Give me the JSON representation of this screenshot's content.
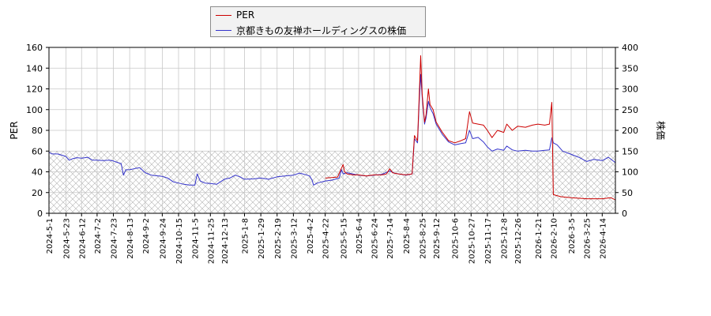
{
  "chart_data": {
    "type": "line",
    "legend": [
      {
        "label": "PER",
        "color": "#cc0000"
      },
      {
        "label": "京都きもの友禅ホールディングスの株価",
        "color": "#3333cc"
      }
    ],
    "legend_position": "top-center",
    "ylabel_left": "PER",
    "ylabel_right": "株価",
    "ylim_left": [
      0,
      160
    ],
    "ylim_right": [
      0,
      400
    ],
    "yticks_left": [
      "0",
      "20",
      "40",
      "60",
      "80",
      "100",
      "120",
      "140",
      "160"
    ],
    "yticks_right": [
      "0",
      "50",
      "100",
      "150",
      "200",
      "250",
      "300",
      "350",
      "400"
    ],
    "grid": true,
    "hatched_region_left_axis": [
      0,
      60
    ],
    "x_tick_labels": [
      "2024-5-1",
      "2024-5-23",
      "2024-6-12",
      "2024-7-2",
      "2024-7-23",
      "2024-8-13",
      "2024-9-2",
      "2024-9-24",
      "2024-10-15",
      "2024-11-5",
      "2024-11-25",
      "2024-12-13",
      "2025-1-8",
      "2025-1-29",
      "2025-2-19",
      "2025-3-12",
      "2025-4-2",
      "2025-4-22",
      "2025-5-15",
      "2025-6-4",
      "2025-6-24",
      "2025-7-14",
      "2025-8-4",
      "2025-8-25",
      "2025-9-12",
      "2025-10-6",
      "2025-10-27",
      "2025-11-17",
      "2025-12-8",
      "2025-12-26",
      "2026-1-21",
      "2026-2-10",
      "2026-3-5",
      "2026-3-25",
      "2026-4-14"
    ],
    "x_range": [
      "2024-5-1",
      "2026-5-1"
    ],
    "series": [
      {
        "name": "PER",
        "axis": "left",
        "color": "#cc0000",
        "points": [
          [
            "2025-4-22",
            34
          ],
          [
            "2025-5-8",
            35
          ],
          [
            "2025-5-12",
            42
          ],
          [
            "2025-5-15",
            47
          ],
          [
            "2025-5-17",
            40
          ],
          [
            "2025-5-20",
            38
          ],
          [
            "2025-5-28",
            37
          ],
          [
            "2025-6-4",
            37
          ],
          [
            "2025-6-14",
            36
          ],
          [
            "2025-6-24",
            37
          ],
          [
            "2025-7-4",
            37
          ],
          [
            "2025-7-10",
            38
          ],
          [
            "2025-7-14",
            43
          ],
          [
            "2025-7-18",
            39
          ],
          [
            "2025-7-25",
            38
          ],
          [
            "2025-8-4",
            37
          ],
          [
            "2025-8-12",
            38
          ],
          [
            "2025-8-15",
            75
          ],
          [
            "2025-8-19",
            70
          ],
          [
            "2025-8-21",
            110
          ],
          [
            "2025-8-23",
            152
          ],
          [
            "2025-8-25",
            115
          ],
          [
            "2025-8-28",
            88
          ],
          [
            "2025-8-30",
            95
          ],
          [
            "2025-9-2",
            120
          ],
          [
            "2025-9-4",
            105
          ],
          [
            "2025-9-8",
            100
          ],
          [
            "2025-9-12",
            88
          ],
          [
            "2025-9-20",
            78
          ],
          [
            "2025-9-28",
            70
          ],
          [
            "2025-10-6",
            68
          ],
          [
            "2025-10-14",
            70
          ],
          [
            "2025-10-20",
            72
          ],
          [
            "2025-10-25",
            98
          ],
          [
            "2025-10-29",
            87
          ],
          [
            "2025-11-5",
            86
          ],
          [
            "2025-11-12",
            85
          ],
          [
            "2025-11-17",
            80
          ],
          [
            "2025-11-23",
            73
          ],
          [
            "2025-11-30",
            80
          ],
          [
            "2025-12-8",
            78
          ],
          [
            "2025-12-12",
            86
          ],
          [
            "2025-12-19",
            80
          ],
          [
            "2025-12-26",
            84
          ],
          [
            "2026-1-5",
            83
          ],
          [
            "2026-1-14",
            85
          ],
          [
            "2026-1-21",
            86
          ],
          [
            "2026-1-30",
            85
          ],
          [
            "2026-2-5",
            86
          ],
          [
            "2026-2-8",
            107
          ],
          [
            "2026-2-10",
            18
          ],
          [
            "2026-2-20",
            16
          ],
          [
            "2026-3-5",
            15
          ],
          [
            "2026-3-25",
            14
          ],
          [
            "2026-4-14",
            14
          ],
          [
            "2026-4-25",
            15
          ],
          [
            "2026-5-1",
            13
          ]
        ]
      },
      {
        "name": "京都きもの友禅ホールディングスの株価",
        "axis": "right",
        "color": "#3333cc",
        "points": [
          [
            "2024-5-1",
            147
          ],
          [
            "2024-5-5",
            143
          ],
          [
            "2024-5-12",
            143
          ],
          [
            "2024-5-18",
            140
          ],
          [
            "2024-5-23",
            137
          ],
          [
            "2024-5-27",
            128
          ],
          [
            "2024-6-1",
            132
          ],
          [
            "2024-6-6",
            134
          ],
          [
            "2024-6-12",
            133
          ],
          [
            "2024-6-20",
            135
          ],
          [
            "2024-6-26",
            128
          ],
          [
            "2024-7-2",
            128
          ],
          [
            "2024-7-10",
            127
          ],
          [
            "2024-7-18",
            128
          ],
          [
            "2024-7-23",
            126
          ],
          [
            "2024-7-29",
            122
          ],
          [
            "2024-8-2",
            120
          ],
          [
            "2024-8-5",
            92
          ],
          [
            "2024-8-8",
            105
          ],
          [
            "2024-8-13",
            105
          ],
          [
            "2024-8-20",
            108
          ],
          [
            "2024-8-26",
            110
          ],
          [
            "2024-9-2",
            98
          ],
          [
            "2024-9-10",
            92
          ],
          [
            "2024-9-24",
            89
          ],
          [
            "2024-10-1",
            85
          ],
          [
            "2024-10-8",
            76
          ],
          [
            "2024-10-15",
            73
          ],
          [
            "2024-10-22",
            70
          ],
          [
            "2024-10-29",
            68
          ],
          [
            "2024-11-5",
            68
          ],
          [
            "2024-11-8",
            95
          ],
          [
            "2024-11-12",
            78
          ],
          [
            "2024-11-18",
            73
          ],
          [
            "2024-11-25",
            72
          ],
          [
            "2024-12-3",
            70
          ],
          [
            "2024-12-13",
            82
          ],
          [
            "2024-12-20",
            85
          ],
          [
            "2024-12-27",
            92
          ],
          [
            "2025-1-2",
            88
          ],
          [
            "2025-1-8",
            82
          ],
          [
            "2025-1-20",
            83
          ],
          [
            "2025-1-29",
            85
          ],
          [
            "2025-2-8",
            82
          ],
          [
            "2025-2-19",
            88
          ],
          [
            "2025-3-1",
            90
          ],
          [
            "2025-3-12",
            92
          ],
          [
            "2025-3-20",
            97
          ],
          [
            "2025-3-28",
            93
          ],
          [
            "2025-4-2",
            90
          ],
          [
            "2025-4-5",
            80
          ],
          [
            "2025-4-7",
            68
          ],
          [
            "2025-4-12",
            73
          ],
          [
            "2025-4-22",
            78
          ],
          [
            "2025-5-1",
            80
          ],
          [
            "2025-5-10",
            85
          ],
          [
            "2025-5-13",
            105
          ],
          [
            "2025-5-15",
            95
          ],
          [
            "2025-5-20",
            98
          ],
          [
            "2025-6-4",
            92
          ],
          [
            "2025-6-14",
            90
          ],
          [
            "2025-6-24",
            92
          ],
          [
            "2025-7-4",
            94
          ],
          [
            "2025-7-14",
            102
          ],
          [
            "2025-7-20",
            97
          ],
          [
            "2025-8-4",
            92
          ],
          [
            "2025-8-12",
            95
          ],
          [
            "2025-8-15",
            180
          ],
          [
            "2025-8-19",
            170
          ],
          [
            "2025-8-21",
            260
          ],
          [
            "2025-8-23",
            335
          ],
          [
            "2025-8-25",
            280
          ],
          [
            "2025-8-28",
            215
          ],
          [
            "2025-8-30",
            230
          ],
          [
            "2025-9-2",
            270
          ],
          [
            "2025-9-4",
            255
          ],
          [
            "2025-9-8",
            240
          ],
          [
            "2025-9-12",
            215
          ],
          [
            "2025-9-20",
            190
          ],
          [
            "2025-9-28",
            172
          ],
          [
            "2025-10-6",
            165
          ],
          [
            "2025-10-14",
            168
          ],
          [
            "2025-10-20",
            170
          ],
          [
            "2025-10-25",
            200
          ],
          [
            "2025-10-29",
            180
          ],
          [
            "2025-11-5",
            183
          ],
          [
            "2025-11-12",
            172
          ],
          [
            "2025-11-17",
            160
          ],
          [
            "2025-11-23",
            150
          ],
          [
            "2025-11-30",
            155
          ],
          [
            "2025-12-8",
            152
          ],
          [
            "2025-12-12",
            162
          ],
          [
            "2025-12-19",
            153
          ],
          [
            "2025-12-26",
            150
          ],
          [
            "2026-1-5",
            152
          ],
          [
            "2026-1-14",
            150
          ],
          [
            "2026-1-21",
            150
          ],
          [
            "2026-1-30",
            152
          ],
          [
            "2026-2-5",
            153
          ],
          [
            "2026-2-8",
            182
          ],
          [
            "2026-2-10",
            170
          ],
          [
            "2026-2-15",
            165
          ],
          [
            "2026-2-22",
            150
          ],
          [
            "2026-3-5",
            142
          ],
          [
            "2026-3-15",
            135
          ],
          [
            "2026-3-25",
            125
          ],
          [
            "2026-4-3",
            130
          ],
          [
            "2026-4-14",
            127
          ],
          [
            "2026-4-22",
            135
          ],
          [
            "2026-5-1",
            122
          ]
        ]
      }
    ]
  }
}
